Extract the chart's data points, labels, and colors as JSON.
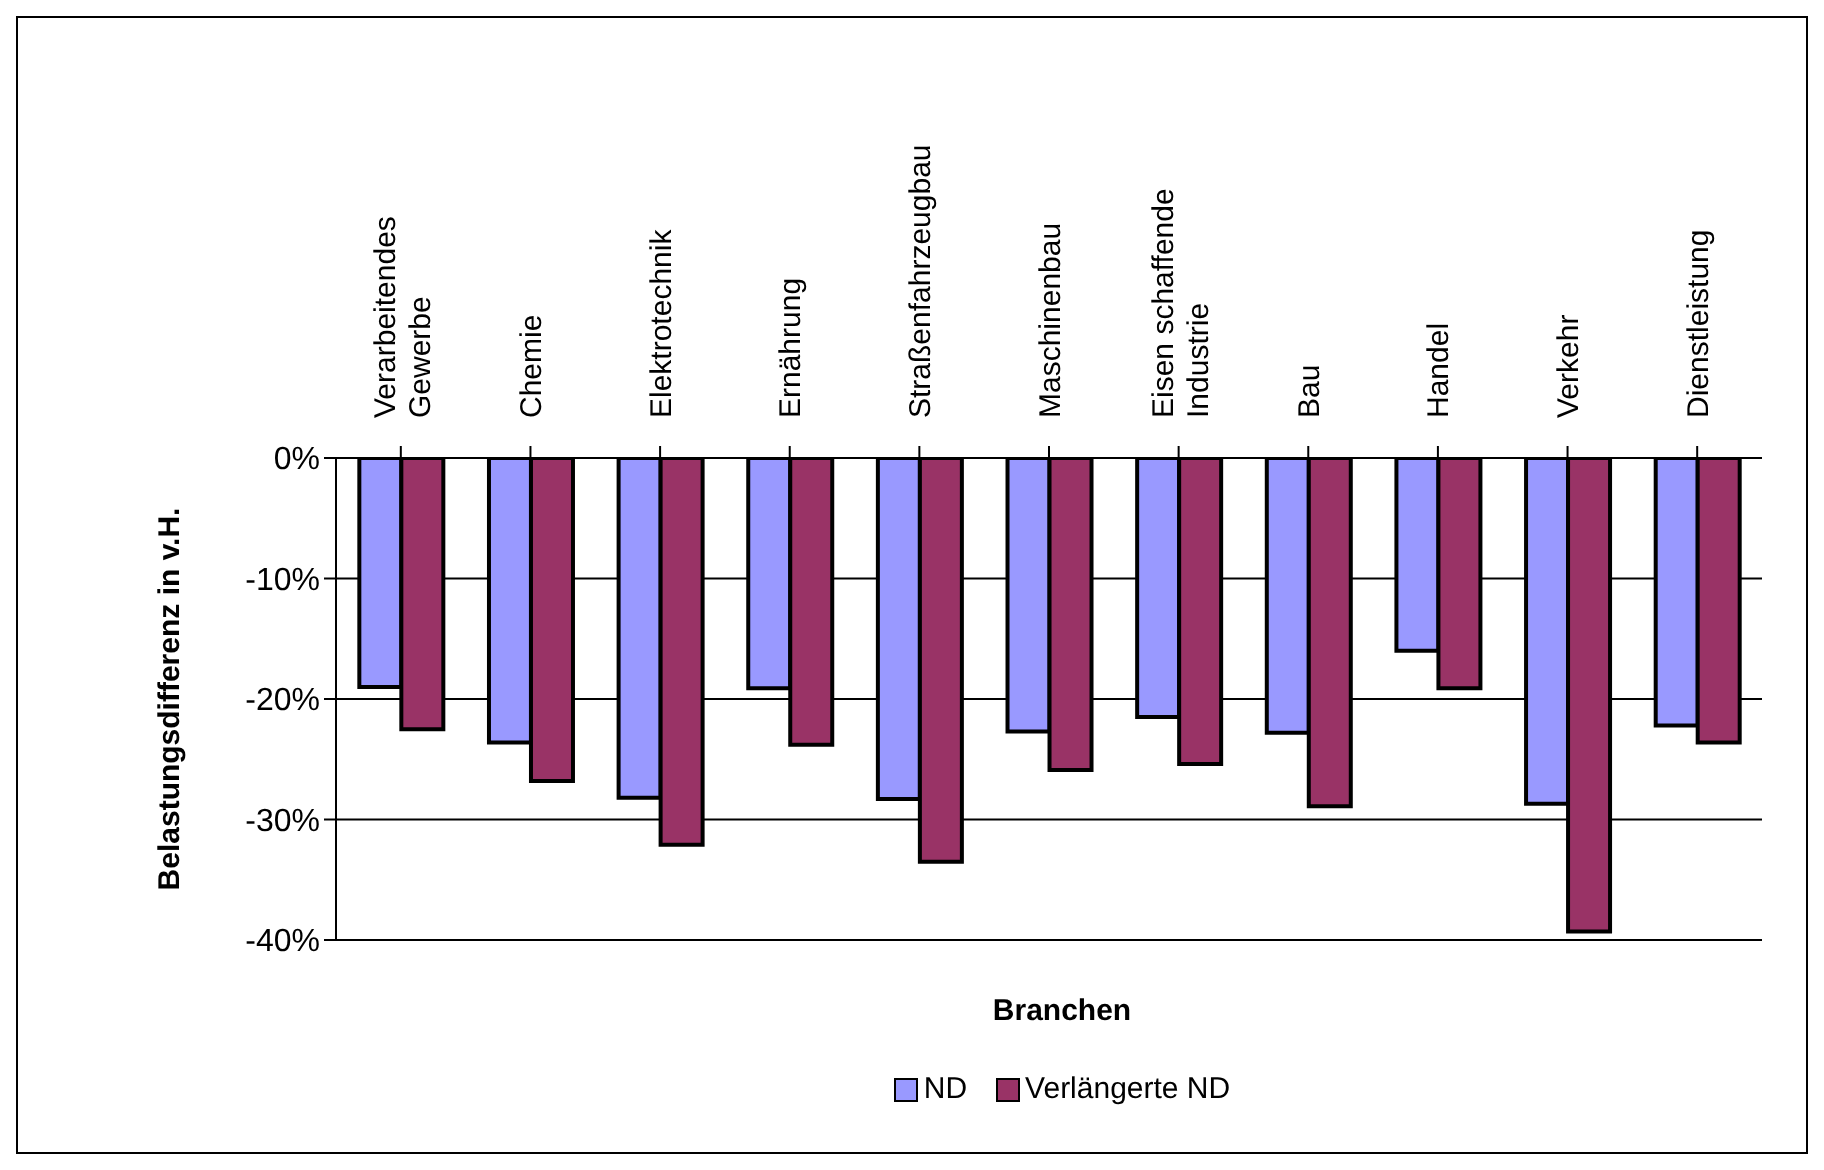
{
  "chart_data": {
    "type": "bar",
    "xlabel": "Branchen",
    "ylabel": "Belastungsdifferenz in v.H.",
    "categories": [
      "Verarbeitendes Gewerbe",
      "Chemie",
      "Elektrotechnik",
      "Ernährung",
      "Straßenfahrzeugbau",
      "Maschinenbau",
      "Eisen schaffende Industrie",
      "Bau",
      "Handel",
      "Verkehr",
      "Dienstleistung"
    ],
    "series": [
      {
        "name": "ND",
        "color": "#9999ff",
        "values": [
          -19,
          -23.6,
          -28.2,
          -19.1,
          -28.3,
          -22.7,
          -21.5,
          -22.8,
          -16,
          -28.7,
          -22.2
        ]
      },
      {
        "name": "Verlängerte ND",
        "color": "#993366",
        "values": [
          -22.5,
          -26.8,
          -32.1,
          -23.8,
          -33.5,
          -25.9,
          -25.4,
          -28.9,
          -19.1,
          -39.3,
          -23.6
        ]
      }
    ],
    "ylim": [
      -40,
      0
    ],
    "yticks": [
      {
        "value": -40,
        "label": "-40%"
      },
      {
        "value": -30,
        "label": "-30%"
      },
      {
        "value": -20,
        "label": "-20%"
      },
      {
        "value": -10,
        "label": "-10%"
      },
      {
        "value": 0,
        "label": "0%"
      }
    ],
    "grid": "y",
    "legend": "bottom"
  }
}
